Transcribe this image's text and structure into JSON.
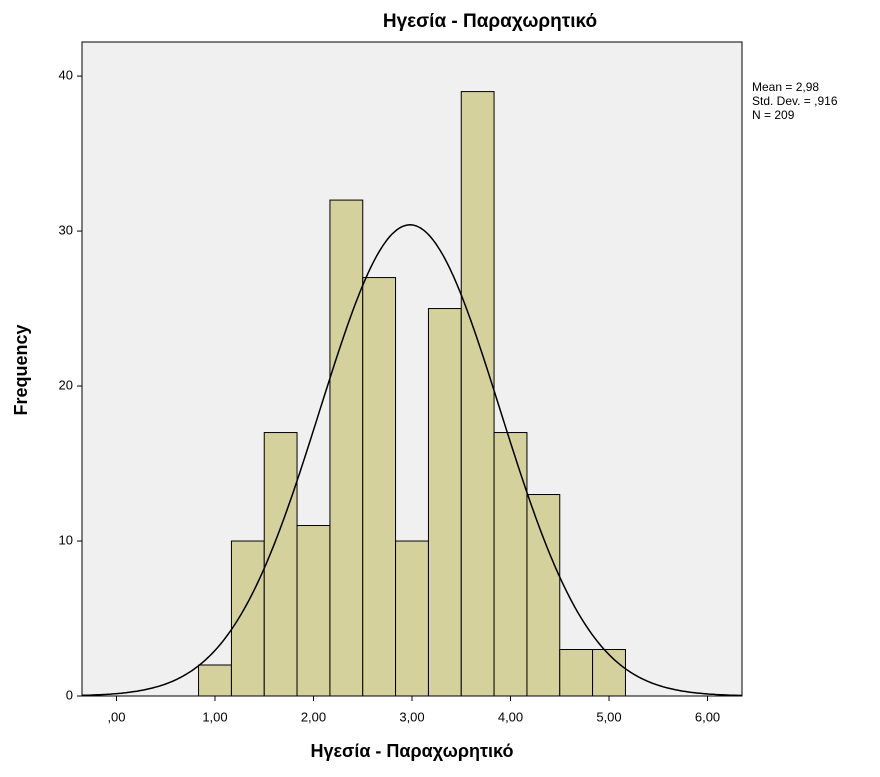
{
  "chart_data": {
    "type": "histogram",
    "title": "Ηγεσία - Παραχωρητικό",
    "x_label": "Ηγεσία - Παραχωρητικό",
    "y_label": "Frequency",
    "bins": [
      0.833,
      1.167,
      1.5,
      1.833,
      2.167,
      2.5,
      2.833,
      3.167,
      3.5,
      3.833,
      4.167,
      4.5,
      4.833,
      5.167
    ],
    "values": [
      2,
      10,
      17,
      11,
      32,
      27,
      10,
      25,
      39,
      17,
      13,
      3,
      3
    ],
    "color": "#d5d19c",
    "xlim": [
      -0.35,
      6.35
    ],
    "ylim": [
      0,
      42.2
    ],
    "xticks": [
      {
        "value": 0,
        "label": ",00"
      },
      {
        "value": 1,
        "label": "1,00"
      },
      {
        "value": 2,
        "label": "2,00"
      },
      {
        "value": 3,
        "label": "3,00"
      },
      {
        "value": 4,
        "label": "4,00"
      },
      {
        "value": 5,
        "label": "5,00"
      },
      {
        "value": 6,
        "label": "6,00"
      }
    ],
    "yticks": [
      0,
      10,
      20,
      30,
      40
    ],
    "stats": [
      {
        "value": 2.98,
        "label": "Mean = 2,98"
      },
      {
        "value": 0.916,
        "label": "Std. Dev. = ,916"
      },
      {
        "value": 209,
        "label": "N = 209"
      }
    ]
  }
}
